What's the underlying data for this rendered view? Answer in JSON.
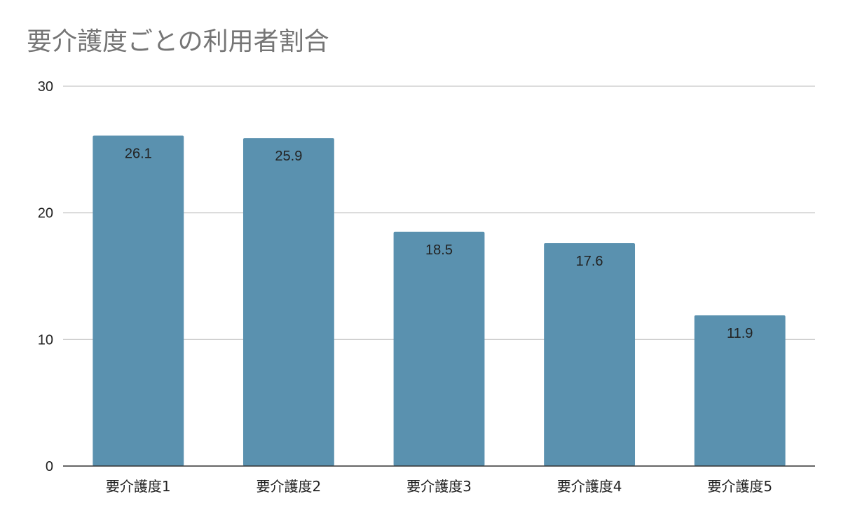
{
  "chart_data": {
    "type": "bar",
    "title": "要介護度ごとの利用者割合",
    "xlabel": "",
    "ylabel": "",
    "categories": [
      "要介護度1",
      "要介護度2",
      "要介護度3",
      "要介護度4",
      "要介護度5"
    ],
    "values": [
      26.1,
      25.9,
      18.5,
      17.6,
      11.9
    ],
    "value_labels": [
      "26.1",
      "25.9",
      "18.5",
      "17.6",
      "11.9"
    ],
    "ylim": [
      0,
      30
    ],
    "yticks": [
      0,
      10,
      20,
      30
    ],
    "ytick_labels": [
      "0",
      "10",
      "20",
      "30"
    ],
    "grid": true,
    "legend": "none",
    "colors": {
      "bar": "#5a91af",
      "grid": "#c8c8c8",
      "axis": "#333333",
      "title": "#757575",
      "text": "#222222"
    }
  }
}
